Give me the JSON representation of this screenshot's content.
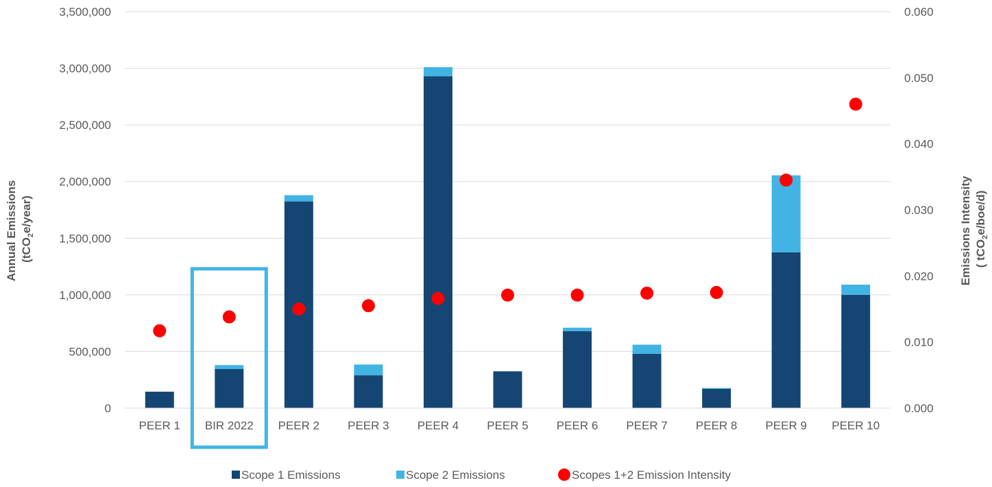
{
  "chart_data": {
    "type": "bar",
    "categories": [
      "PEER 1",
      "BIR 2022",
      "PEER 2",
      "PEER 3",
      "PEER 4",
      "PEER 5",
      "PEER 6",
      "PEER 7",
      "PEER 8",
      "PEER 9",
      "PEER 10"
    ],
    "series": [
      {
        "name": "Scope 1 Emissions",
        "kind": "stacked-bar",
        "axis": "left",
        "color": "#154673",
        "values": [
          145000,
          345000,
          1825000,
          290000,
          2930000,
          325000,
          680000,
          480000,
          170000,
          1375000,
          1000000
        ]
      },
      {
        "name": "Scope 2 Emissions",
        "kind": "stacked-bar",
        "axis": "left",
        "color": "#41B4E4",
        "values": [
          0,
          35000,
          55000,
          95000,
          80000,
          0,
          30000,
          80000,
          8000,
          680000,
          90000
        ]
      },
      {
        "name": "Scopes 1+2 Emission Intensity",
        "kind": "scatter",
        "axis": "right",
        "color": "#FF0000",
        "values": [
          0.0117,
          0.0138,
          0.015,
          0.0155,
          0.0166,
          0.0171,
          0.0171,
          0.0174,
          0.0175,
          0.0345,
          0.046
        ]
      }
    ],
    "y_left": {
      "label_line1": "Annual Emissions",
      "label_line2_pre": "(tCO",
      "label_line2_sub": "2",
      "label_line2_post": "e/year)",
      "ylim": [
        0,
        3500000
      ],
      "ticks": [
        "0",
        "500,000",
        "1,000,000",
        "1,500,000",
        "2,000,000",
        "2,500,000",
        "3,000,000",
        "3,500,000"
      ],
      "tick_values": [
        0,
        500000,
        1000000,
        1500000,
        2000000,
        2500000,
        3000000,
        3500000
      ]
    },
    "y_right": {
      "label_line1": "Emissions Intensity",
      "label_line2_pre": "( tCO",
      "label_line2_sub": "2",
      "label_line2_post": "e/boe/d)",
      "ylim": [
        0,
        0.06
      ],
      "ticks": [
        "0.000",
        "0.010",
        "0.020",
        "0.030",
        "0.040",
        "0.050",
        "0.060"
      ],
      "tick_values": [
        0,
        0.01,
        0.02,
        0.03,
        0.04,
        0.05,
        0.06
      ]
    },
    "highlight": {
      "category": "BIR 2022",
      "color": "#41B4E4",
      "top_value": 1230000
    },
    "grid": true,
    "legend_position": "bottom"
  }
}
